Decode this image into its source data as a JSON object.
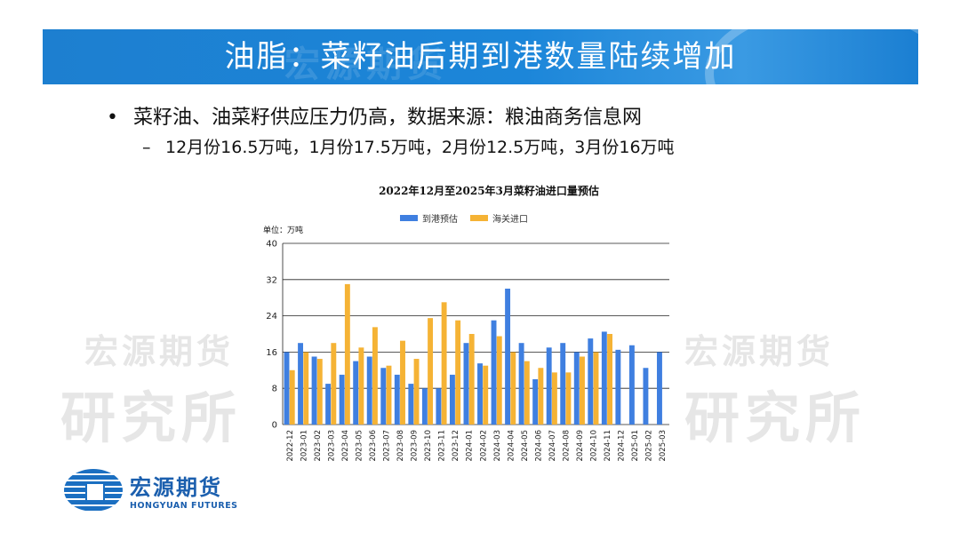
{
  "slide": {
    "title": "油脂：菜籽油后期到港数量陆续增加",
    "bullet": "菜籽油、油菜籽供应压力仍高，数据来源：粮油商务信息网",
    "sub_bullet": "12月份16.5万吨，1月份17.5万吨，2月份12.5万吨，3月份16万吨"
  },
  "watermark": {
    "line1": "宏源期货",
    "line2": "研究所"
  },
  "logo": {
    "name_cn": "宏源期货",
    "name_en": "HONGYUAN FUTURES"
  },
  "colors": {
    "banner": "#1d7fd0",
    "series_arrival": "#3f7fe0",
    "series_customs": "#f5b335"
  },
  "chart_data": {
    "type": "bar",
    "title": "2022年12月至2025年3月菜籽油进口量预估",
    "unit_label": "单位：万吨",
    "ylim": [
      0,
      40
    ],
    "yticks": [
      0,
      8,
      16,
      24,
      32,
      40
    ],
    "grid": true,
    "legend_position": "top",
    "categories": [
      "2022-12",
      "2023-01",
      "2023-02",
      "2023-03",
      "2023-04",
      "2023-05",
      "2023-06",
      "2023-07",
      "2023-08",
      "2023-09",
      "2023-10",
      "2023-11",
      "2023-12",
      "2024-01",
      "2024-02",
      "2024-03",
      "2024-04",
      "2024-05",
      "2024-06",
      "2024-07",
      "2024-08",
      "2024-09",
      "2024-10",
      "2024-11",
      "2024-12",
      "2025-01",
      "2025-02",
      "2025-03"
    ],
    "series": [
      {
        "name": "到港预估",
        "color": "#3f7fe0",
        "values": [
          16,
          18,
          15,
          9,
          11,
          14,
          15,
          12.5,
          11,
          9,
          8,
          8,
          11,
          18,
          13.5,
          23,
          30,
          18,
          10,
          17,
          18,
          16,
          19,
          20.5,
          16.5,
          17.5,
          12.5,
          16
        ]
      },
      {
        "name": "海关进口",
        "color": "#f5b335",
        "values": [
          12,
          16,
          14.5,
          18,
          31,
          17,
          21.5,
          13,
          18.5,
          14.5,
          23.5,
          27,
          23,
          20,
          13,
          19.5,
          16,
          14,
          12.5,
          11.5,
          11.5,
          15,
          16,
          20,
          null,
          null,
          null,
          null
        ]
      }
    ]
  }
}
